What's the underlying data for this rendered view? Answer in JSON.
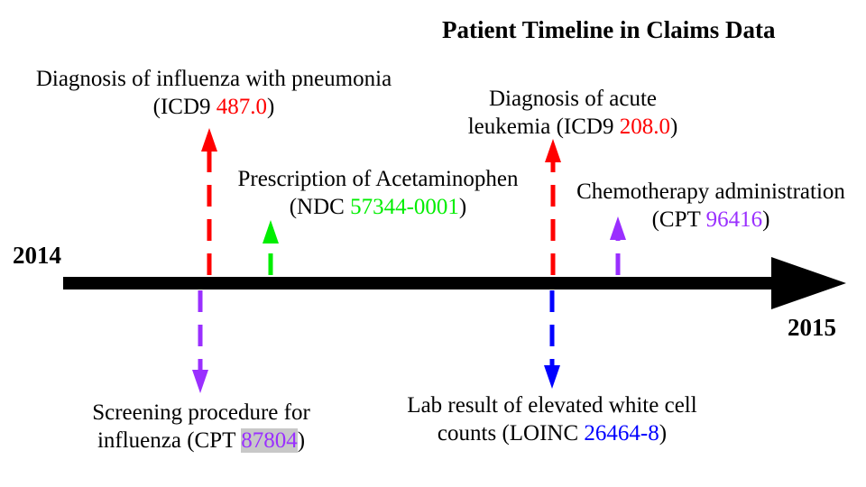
{
  "title": "Patient Timeline in Claims Data",
  "timeline": {
    "start_label": "2014",
    "end_label": "2015"
  },
  "colors": {
    "axis": "#000000",
    "diagnosis": "#ff0000",
    "prescription": "#00ee00",
    "procedure": "#9a2fff",
    "lab": "#0000ff"
  },
  "events": {
    "influenza_dx": {
      "line1": "Diagnosis of influenza with pneumonia",
      "prefix": "(ICD9 ",
      "code": "487.0",
      "suffix": ")"
    },
    "acetaminophen_rx": {
      "line1": "Prescription of Acetaminophen",
      "prefix": "(NDC ",
      "code": "57344-0001",
      "suffix": ")"
    },
    "leukemia_dx": {
      "line1": "Diagnosis of acute",
      "prefix": "leukemia (ICD9 ",
      "code": "208.0",
      "suffix": ")"
    },
    "chemo": {
      "line1": "Chemotherapy administration",
      "prefix": "(CPT ",
      "code": "96416",
      "suffix": ")"
    },
    "influenza_screen": {
      "line1": "Screening procedure for",
      "prefix": "influenza (CPT ",
      "code": "87804",
      "suffix": ")"
    },
    "wbc_lab": {
      "line1": "Lab result of elevated white cell",
      "prefix": "counts (LOINC ",
      "code": "26464-8",
      "suffix": ")"
    }
  }
}
